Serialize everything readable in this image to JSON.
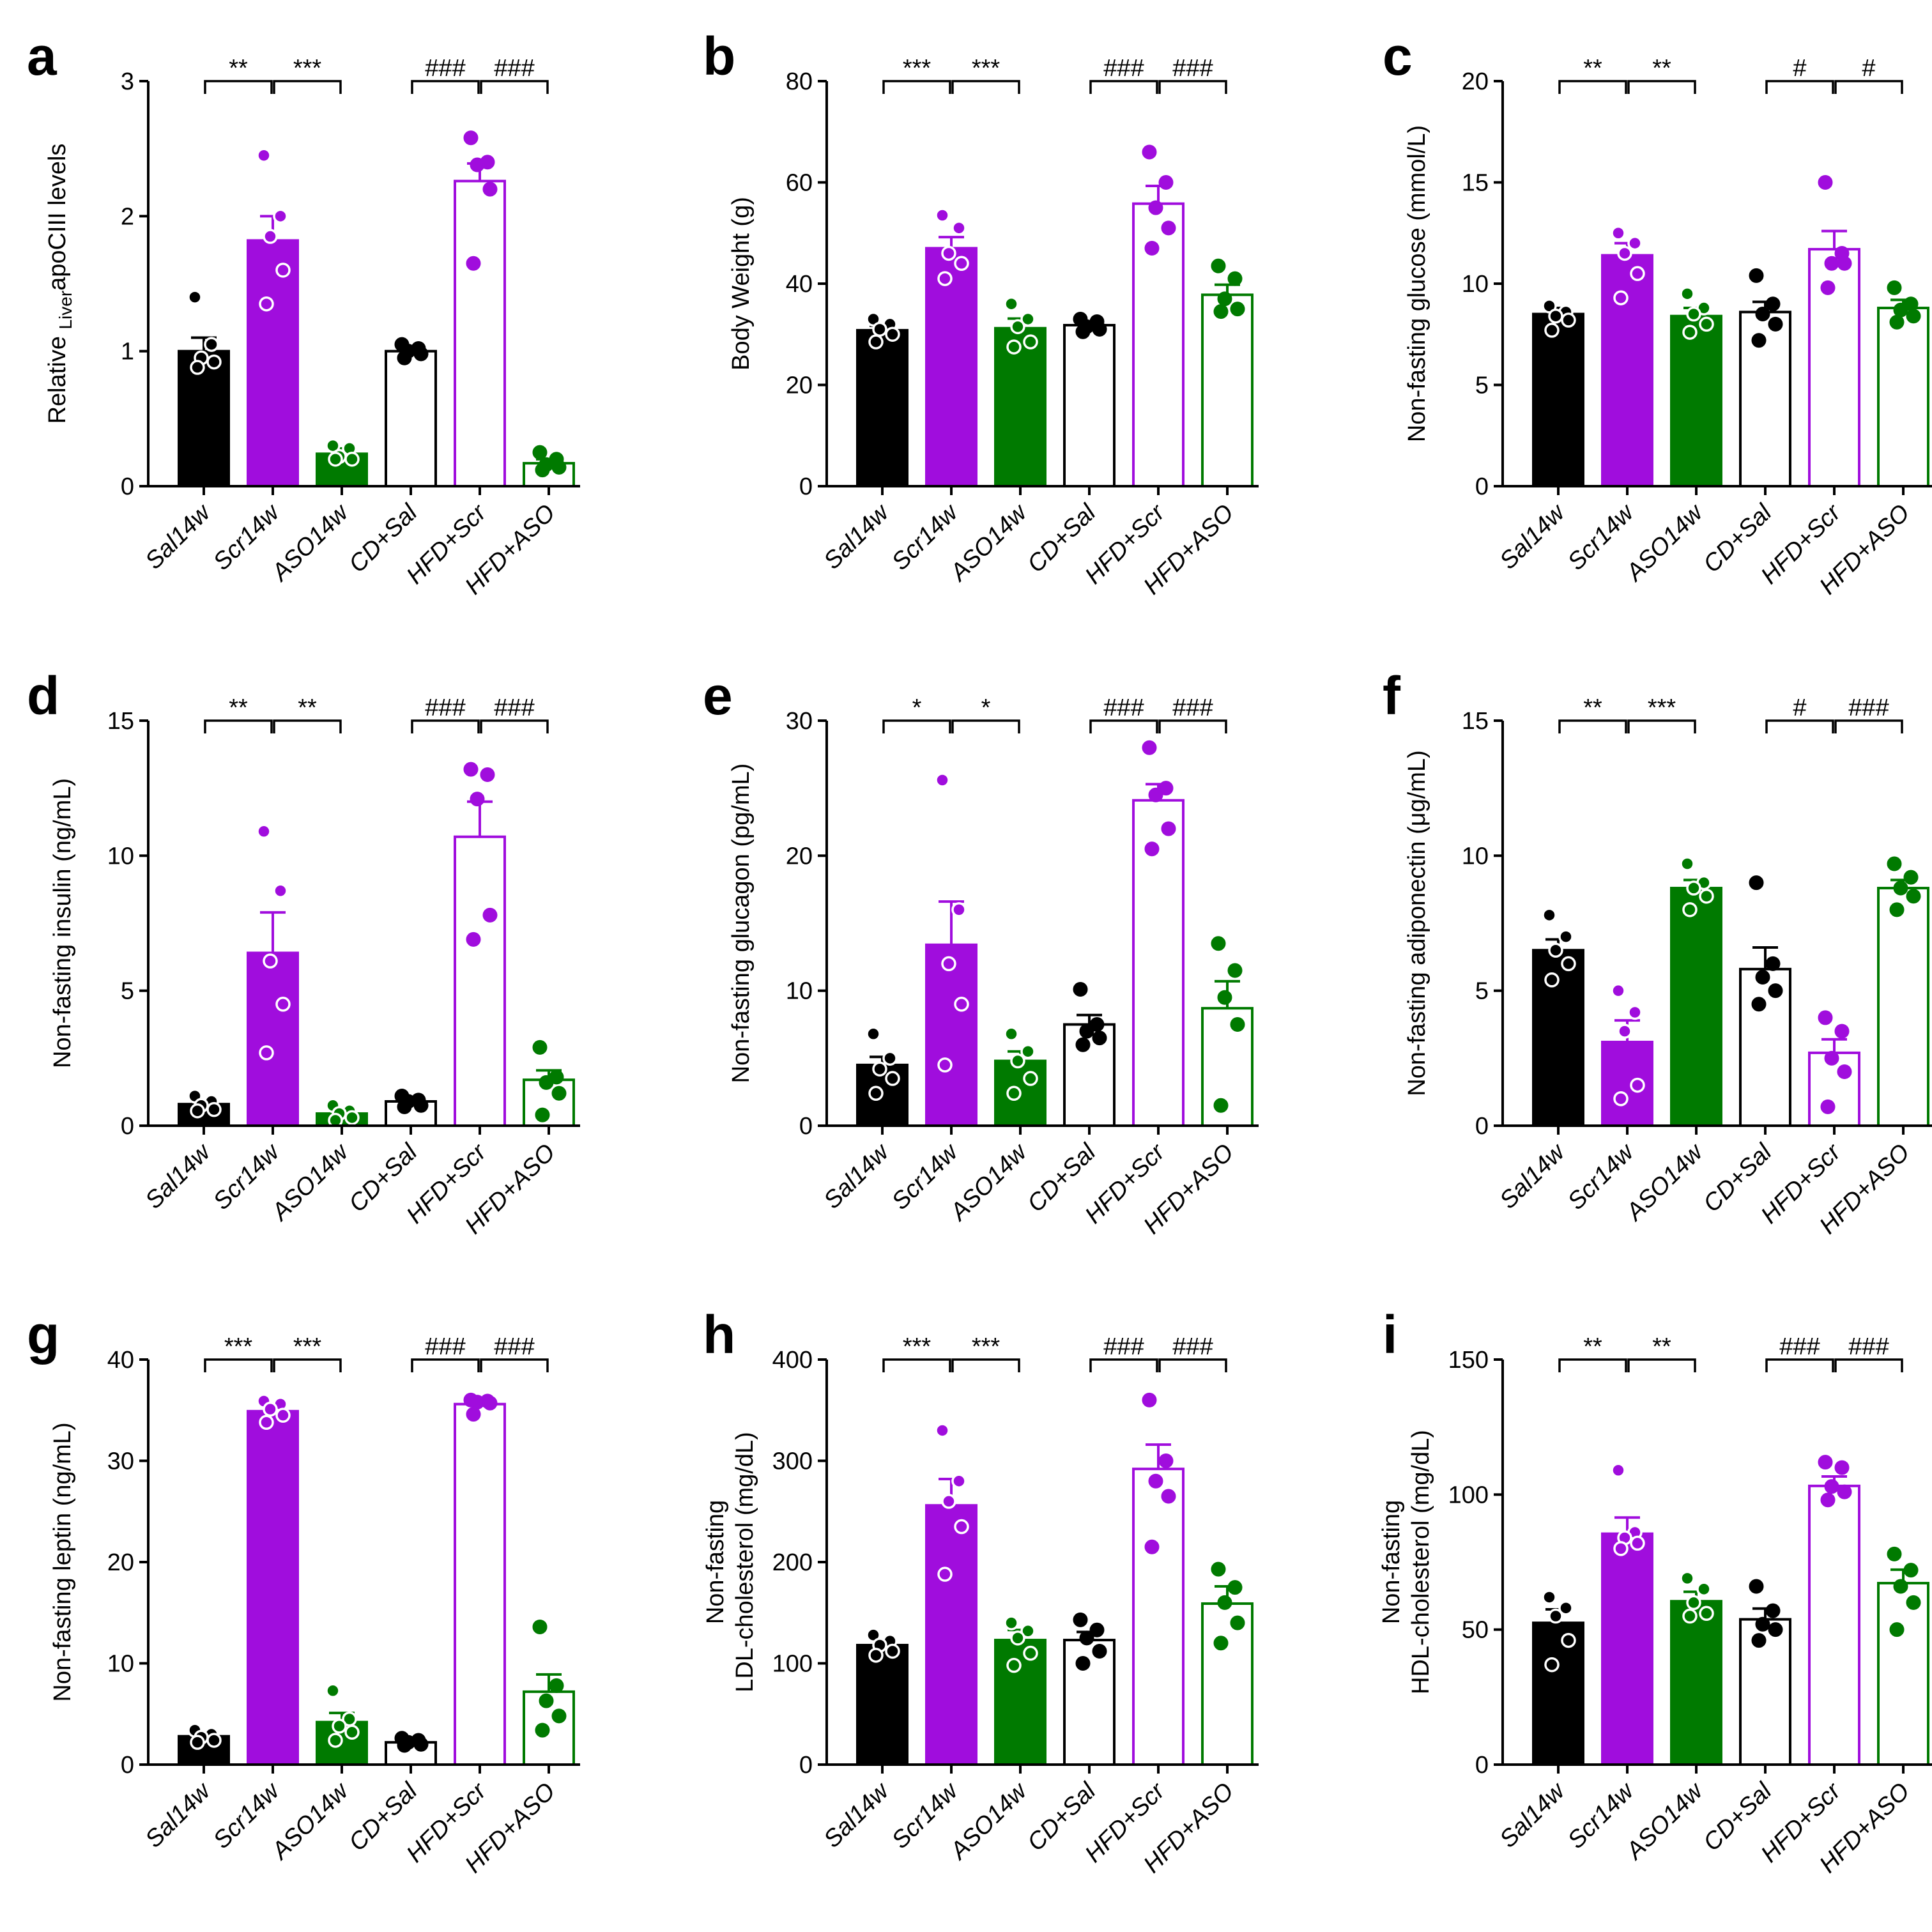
{
  "figure": {
    "categories": [
      "Sal14w",
      "Scr14w",
      "ASO14w",
      "CD+Sal",
      "HFD+Scr",
      "HFD+ASO"
    ],
    "category_colors": [
      "#000000",
      "#a00ddd",
      "#007a00",
      "#000000",
      "#a00ddd",
      "#007a00"
    ],
    "category_filled": [
      true,
      true,
      true,
      false,
      false,
      false
    ],
    "point_open": [
      true,
      true,
      true,
      false,
      false,
      false
    ]
  },
  "chart_data": [
    {
      "panel": "a",
      "type": "bar",
      "ylabel": "Relative LiverapoCIII levels",
      "ylabel_parts": [
        "Relative ",
        "Liver",
        "apoCIII levels"
      ],
      "ylim": [
        0,
        3
      ],
      "yticks": [
        0,
        1,
        2,
        3
      ],
      "means": [
        1.0,
        1.82,
        0.24,
        1.0,
        2.26,
        0.17
      ],
      "sems": [
        0.1,
        0.18,
        0.04,
        0.03,
        0.13,
        0.03
      ],
      "points": [
        [
          1.4,
          1.05,
          0.95,
          0.92,
          0.88
        ],
        [
          2.45,
          2.0,
          1.85,
          1.6,
          1.35
        ],
        [
          0.3,
          0.28,
          0.22,
          0.2,
          0.2
        ],
        [
          1.05,
          1.02,
          1.0,
          0.98,
          0.95
        ],
        [
          2.58,
          2.4,
          2.38,
          2.2,
          1.65
        ],
        [
          0.25,
          0.2,
          0.16,
          0.14,
          0.12
        ]
      ],
      "significance": [
        {
          "from": 0,
          "to": 1,
          "label": "**"
        },
        {
          "from": 1,
          "to": 2,
          "label": "***"
        },
        {
          "from": 3,
          "to": 4,
          "label": "###"
        },
        {
          "from": 4,
          "to": 5,
          "label": "###"
        }
      ]
    },
    {
      "panel": "b",
      "type": "bar",
      "ylabel": "Body Weight (g)",
      "ylim": [
        0,
        80
      ],
      "yticks": [
        0,
        20,
        40,
        60,
        80
      ],
      "means": [
        30.8,
        47.0,
        31.2,
        31.8,
        55.8,
        37.8
      ],
      "sems": [
        0.9,
        2.2,
        1.9,
        0.5,
        3.5,
        2.0
      ],
      "points": [
        [
          33,
          32,
          31,
          30,
          28.5
        ],
        [
          53.5,
          51,
          46,
          44,
          41
        ],
        [
          36,
          33,
          31.5,
          28.5,
          27.5
        ],
        [
          33,
          32.5,
          31.5,
          31,
          30.5
        ],
        [
          66,
          60,
          55,
          51,
          47
        ],
        [
          43.5,
          41,
          37,
          35,
          34.5
        ]
      ],
      "significance": [
        {
          "from": 0,
          "to": 1,
          "label": "***"
        },
        {
          "from": 1,
          "to": 2,
          "label": "***"
        },
        {
          "from": 3,
          "to": 4,
          "label": "###"
        },
        {
          "from": 4,
          "to": 5,
          "label": "###"
        }
      ]
    },
    {
      "panel": "c",
      "type": "bar",
      "ylabel": "Non-fasting glucose (mmol/L)",
      "ylim": [
        0,
        20
      ],
      "yticks": [
        0,
        5,
        10,
        15,
        20
      ],
      "means": [
        8.5,
        11.4,
        8.4,
        8.6,
        11.7,
        8.8
      ],
      "sems": [
        0.3,
        0.6,
        0.4,
        0.5,
        0.9,
        0.4
      ],
      "points": [
        [
          8.9,
          8.6,
          8.4,
          8.2,
          7.7
        ],
        [
          12.5,
          12.0,
          11.5,
          10.5,
          9.3
        ],
        [
          9.5,
          8.8,
          8.5,
          8.0,
          7.6
        ],
        [
          10.4,
          9.0,
          8.5,
          8.0,
          7.2
        ],
        [
          15.0,
          11.5,
          11.0,
          11.0,
          9.8
        ],
        [
          9.8,
          9.0,
          8.7,
          8.4,
          8.1
        ]
      ],
      "significance": [
        {
          "from": 0,
          "to": 1,
          "label": "**"
        },
        {
          "from": 1,
          "to": 2,
          "label": "**"
        },
        {
          "from": 3,
          "to": 4,
          "label": "#"
        },
        {
          "from": 4,
          "to": 5,
          "label": "#"
        }
      ]
    },
    {
      "panel": "d",
      "type": "bar",
      "ylabel": "Non-fasting insulin (ng/mL)",
      "ylim": [
        0,
        15
      ],
      "yticks": [
        0,
        5,
        10,
        15
      ],
      "means": [
        0.8,
        6.4,
        0.45,
        0.9,
        10.7,
        1.7
      ],
      "sems": [
        0.1,
        1.5,
        0.1,
        0.15,
        1.3,
        0.35
      ],
      "points": [
        [
          1.1,
          0.9,
          0.75,
          0.6,
          0.55
        ],
        [
          10.9,
          8.7,
          6.1,
          4.5,
          2.7
        ],
        [
          0.75,
          0.55,
          0.45,
          0.3,
          0.2
        ],
        [
          1.1,
          0.95,
          0.9,
          0.75,
          0.7
        ],
        [
          13.2,
          13.0,
          12.1,
          7.8,
          6.9
        ],
        [
          2.9,
          1.8,
          1.6,
          1.2,
          0.4
        ]
      ],
      "significance": [
        {
          "from": 0,
          "to": 1,
          "label": "**"
        },
        {
          "from": 1,
          "to": 2,
          "label": "**"
        },
        {
          "from": 3,
          "to": 4,
          "label": "###"
        },
        {
          "from": 4,
          "to": 5,
          "label": "###"
        }
      ]
    },
    {
      "panel": "e",
      "type": "bar",
      "ylabel": "Non-fasting glucagon (pg/mL)",
      "ylim": [
        0,
        30
      ],
      "yticks": [
        0,
        10,
        20,
        30
      ],
      "means": [
        4.5,
        13.4,
        4.8,
        7.5,
        24.1,
        8.7
      ],
      "sems": [
        0.6,
        3.2,
        0.7,
        0.7,
        1.2,
        2.0
      ],
      "points": [
        [
          6.8,
          5.0,
          4.2,
          3.5,
          2.4
        ],
        [
          25.6,
          16.0,
          12.0,
          9.0,
          4.5
        ],
        [
          6.8,
          5.5,
          4.8,
          3.5,
          2.4
        ],
        [
          10.1,
          7.5,
          7.0,
          6.5,
          6.0
        ],
        [
          28.0,
          25.0,
          24.5,
          22.0,
          20.5
        ],
        [
          13.5,
          11.5,
          9.5,
          7.5,
          1.5
        ]
      ],
      "significance": [
        {
          "from": 0,
          "to": 1,
          "label": "*"
        },
        {
          "from": 1,
          "to": 2,
          "label": "*"
        },
        {
          "from": 3,
          "to": 4,
          "label": "###"
        },
        {
          "from": 4,
          "to": 5,
          "label": "###"
        }
      ]
    },
    {
      "panel": "f",
      "type": "bar",
      "ylabel": "Non-fasting adiponectin (μg/mL)",
      "ylim": [
        0,
        15
      ],
      "yticks": [
        0,
        5,
        10,
        15
      ],
      "means": [
        6.5,
        3.1,
        8.8,
        5.8,
        2.7,
        8.8
      ],
      "sems": [
        0.4,
        0.8,
        0.3,
        0.8,
        0.5,
        0.3
      ],
      "points": [
        [
          7.8,
          7.0,
          6.5,
          6.0,
          5.4
        ],
        [
          5.0,
          4.2,
          3.5,
          1.5,
          1.0
        ],
        [
          9.7,
          9.0,
          8.8,
          8.5,
          8.0
        ],
        [
          9.0,
          6.0,
          5.5,
          5.0,
          4.5
        ],
        [
          4.0,
          3.5,
          2.5,
          2.0,
          0.7
        ],
        [
          9.7,
          9.2,
          8.8,
          8.5,
          8.0
        ]
      ],
      "significance": [
        {
          "from": 0,
          "to": 1,
          "label": "**"
        },
        {
          "from": 1,
          "to": 2,
          "label": "***"
        },
        {
          "from": 3,
          "to": 4,
          "label": "#"
        },
        {
          "from": 4,
          "to": 5,
          "label": "###"
        }
      ]
    },
    {
      "panel": "g",
      "type": "bar",
      "ylabel": "Non-fasting leptin (ng/mL)",
      "ylim": [
        0,
        40
      ],
      "yticks": [
        0,
        10,
        20,
        30,
        40
      ],
      "means": [
        2.8,
        34.9,
        4.2,
        2.2,
        35.6,
        7.2
      ],
      "sems": [
        0.3,
        0.5,
        0.9,
        0.2,
        0.4,
        1.7
      ],
      "points": [
        [
          3.4,
          3.0,
          2.7,
          2.4,
          2.2
        ],
        [
          35.9,
          35.6,
          35.1,
          34.5,
          33.8
        ],
        [
          7.3,
          4.5,
          3.8,
          3.2,
          2.4
        ],
        [
          2.6,
          2.4,
          2.2,
          2.0,
          1.9
        ],
        [
          36.0,
          35.9,
          35.8,
          35.7,
          34.6
        ],
        [
          13.6,
          7.8,
          6.3,
          4.8,
          3.4
        ]
      ],
      "significance": [
        {
          "from": 0,
          "to": 1,
          "label": "***"
        },
        {
          "from": 1,
          "to": 2,
          "label": "***"
        },
        {
          "from": 3,
          "to": 4,
          "label": "###"
        },
        {
          "from": 4,
          "to": 5,
          "label": "###"
        }
      ]
    },
    {
      "panel": "h",
      "type": "bar",
      "ylabel": "Non-fasting LDL-cholesterol (mg/dL)",
      "ylabel_lines": [
        "Non-fasting",
        "LDL-cholesterol (mg/dL)"
      ],
      "ylim": [
        0,
        400
      ],
      "yticks": [
        0,
        100,
        200,
        300,
        400
      ],
      "means": [
        118,
        256,
        123,
        123,
        292,
        159
      ],
      "sems": [
        5,
        26,
        10,
        8,
        24,
        17
      ],
      "points": [
        [
          128,
          122,
          118,
          112,
          108
        ],
        [
          330,
          280,
          260,
          235,
          188
        ],
        [
          140,
          132,
          125,
          110,
          98
        ],
        [
          143,
          133,
          125,
          112,
          100
        ],
        [
          360,
          300,
          280,
          265,
          215
        ],
        [
          193,
          175,
          160,
          140,
          120
        ]
      ],
      "significance": [
        {
          "from": 0,
          "to": 1,
          "label": "***"
        },
        {
          "from": 1,
          "to": 2,
          "label": "***"
        },
        {
          "from": 3,
          "to": 4,
          "label": "###"
        },
        {
          "from": 4,
          "to": 5,
          "label": "###"
        }
      ]
    },
    {
      "panel": "i",
      "type": "bar",
      "ylabel": "Non-fasting HDL-cholesterol (mg/dL)",
      "ylabel_lines": [
        "Non-fasting",
        "HDL-cholesterol (mg/dL)"
      ],
      "ylim": [
        0,
        150
      ],
      "yticks": [
        0,
        50,
        100,
        150
      ],
      "means": [
        52.5,
        85.5,
        60.5,
        53.8,
        103.2,
        67.2
      ],
      "sems": [
        5,
        6,
        3.5,
        4,
        3.5,
        5
      ],
      "points": [
        [
          62,
          58,
          55,
          46,
          37
        ],
        [
          109,
          86,
          84,
          82,
          80
        ],
        [
          69,
          65,
          60,
          56,
          55
        ],
        [
          66,
          57,
          52,
          50,
          46
        ],
        [
          112,
          110,
          103,
          101,
          98
        ],
        [
          78,
          72,
          66,
          60,
          50
        ]
      ],
      "significance": [
        {
          "from": 0,
          "to": 1,
          "label": "**"
        },
        {
          "from": 1,
          "to": 2,
          "label": "**"
        },
        {
          "from": 3,
          "to": 4,
          "label": "###"
        },
        {
          "from": 4,
          "to": 5,
          "label": "###"
        }
      ]
    }
  ]
}
